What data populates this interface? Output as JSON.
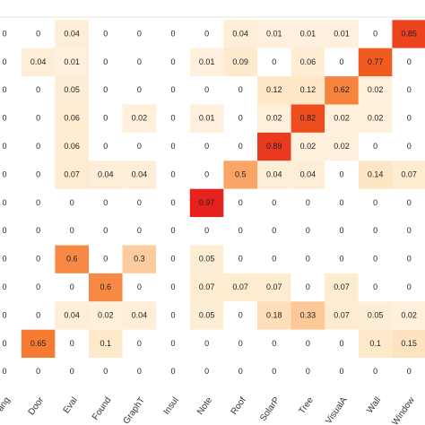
{
  "chart_data": {
    "type": "heatmap",
    "x": [
      "ang",
      "Door",
      "Eval",
      "Found",
      "GraphT",
      "Insul",
      "Note",
      "Roof",
      "SolarP",
      "Tree",
      "VisualA",
      "Wall",
      "Window"
    ],
    "values": [
      [
        0,
        0,
        0.04,
        0,
        0,
        0,
        0,
        0.04,
        0.01,
        0.01,
        0.01,
        0,
        0.85
      ],
      [
        0,
        0.04,
        0.01,
        0,
        0,
        0,
        0.01,
        0.09,
        0,
        0.06,
        0,
        0.77,
        0
      ],
      [
        0,
        0,
        0.05,
        0,
        0,
        0,
        0,
        0,
        0.12,
        0.12,
        0.62,
        0.02,
        0
      ],
      [
        0,
        0,
        0.06,
        0,
        0.02,
        0,
        0.01,
        0,
        0.02,
        0.82,
        0.02,
        0.02,
        0
      ],
      [
        0,
        0,
        0.06,
        0,
        0,
        0,
        0,
        0,
        0.89,
        0.02,
        0.02,
        0,
        0
      ],
      [
        0,
        0,
        0.07,
        0.04,
        0.04,
        0,
        0,
        0.5,
        0.04,
        0.04,
        0,
        0.14,
        0.07
      ],
      [
        0,
        0,
        0,
        0,
        0,
        0,
        0.97,
        0,
        0,
        0,
        0,
        0,
        0
      ],
      [
        0,
        0,
        0,
        0,
        0,
        0,
        0,
        0,
        0,
        0,
        0,
        0,
        0
      ],
      [
        0,
        0,
        0.6,
        0,
        0.3,
        0,
        0.05,
        0,
        0,
        0,
        0,
        0,
        0
      ],
      [
        0,
        0,
        0,
        0.6,
        0,
        0,
        0.07,
        0.07,
        0.07,
        0,
        0.07,
        0,
        0
      ],
      [
        0,
        0,
        0.04,
        0.02,
        0.04,
        0,
        0.05,
        0,
        0.18,
        0.33,
        0.07,
        0.05,
        0.02
      ],
      [
        0,
        0.65,
        0,
        0.1,
        0,
        0,
        0,
        0,
        0,
        0,
        0,
        0.1,
        0.15
      ],
      [
        0,
        0,
        0,
        0,
        0,
        0,
        0,
        0,
        0,
        0,
        0,
        0,
        0
      ]
    ],
    "zlim": [
      0,
      1
    ],
    "colorscale": [
      "#ffffff",
      "#fee8c8",
      "#fdbb84",
      "#f46d21",
      "#e31a1c"
    ]
  }
}
